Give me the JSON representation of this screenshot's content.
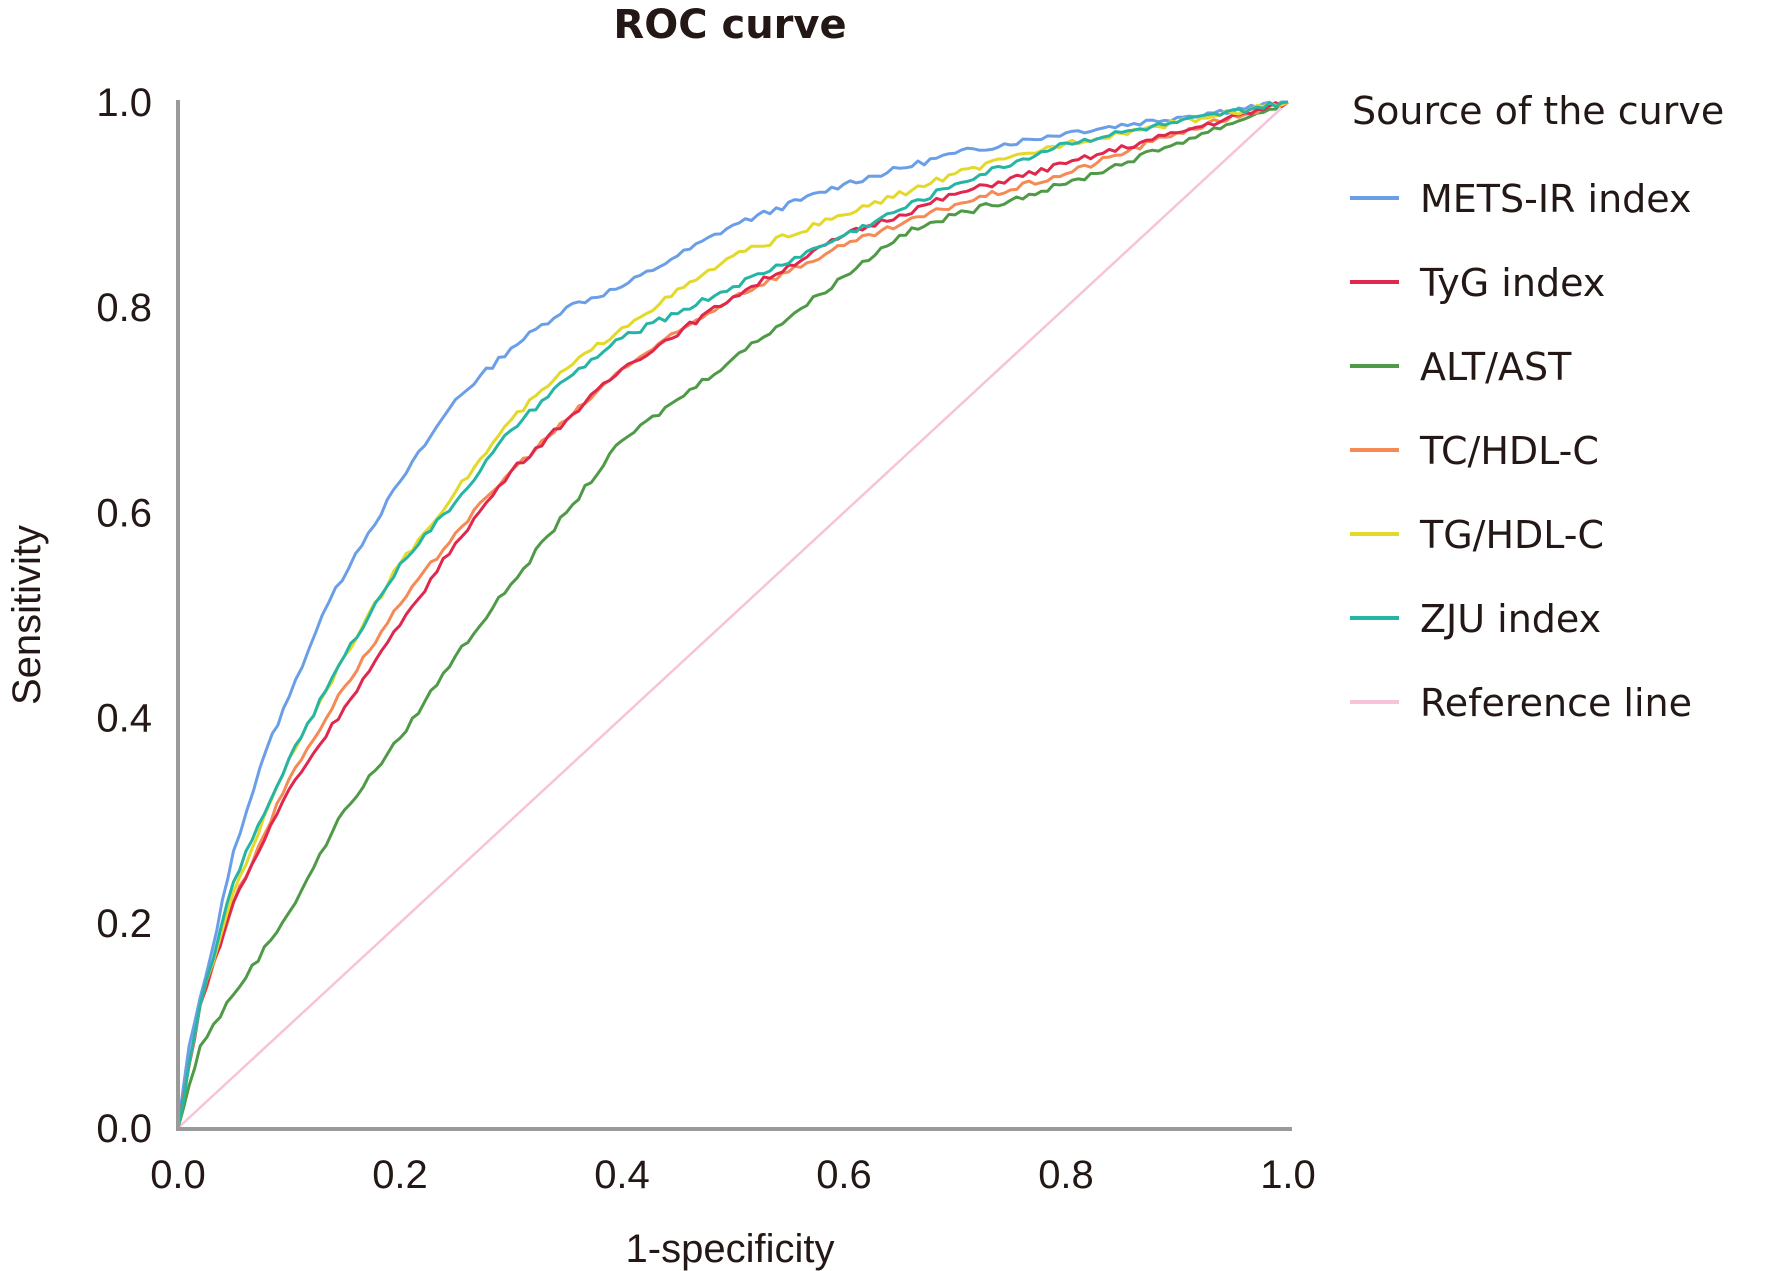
{
  "chart_data": {
    "type": "line",
    "title": "ROC curve",
    "xlabel": "1-specificity",
    "ylabel": "Sensitivity",
    "xlim": [
      0,
      1
    ],
    "ylim": [
      0,
      1
    ],
    "xticks": [
      "0.0",
      "0.2",
      "0.4",
      "0.6",
      "0.8",
      "1.0"
    ],
    "yticks": [
      "0.0",
      "0.2",
      "0.4",
      "0.6",
      "0.8",
      "1.0"
    ],
    "xtick_values": [
      0,
      0.2,
      0.4,
      0.6,
      0.8,
      1.0
    ],
    "ytick_values": [
      0,
      0.2,
      0.4,
      0.6,
      0.8,
      1.0
    ],
    "grid": false,
    "legend": {
      "title": "Source of the curve",
      "placement": "right"
    },
    "series": [
      {
        "name": "METS-IR index",
        "color": "#6a9fe8",
        "x": [
          0,
          0.01,
          0.03,
          0.05,
          0.08,
          0.1,
          0.13,
          0.16,
          0.2,
          0.25,
          0.3,
          0.35,
          0.4,
          0.45,
          0.5,
          0.6,
          0.7,
          0.8,
          0.9,
          1.0
        ],
        "y": [
          0,
          0.08,
          0.17,
          0.27,
          0.37,
          0.42,
          0.5,
          0.56,
          0.63,
          0.71,
          0.76,
          0.8,
          0.82,
          0.85,
          0.88,
          0.92,
          0.95,
          0.97,
          0.985,
          1.0
        ]
      },
      {
        "name": "TyG index",
        "color": "#e0284e",
        "x": [
          0,
          0.02,
          0.05,
          0.1,
          0.15,
          0.2,
          0.25,
          0.3,
          0.35,
          0.4,
          0.5,
          0.6,
          0.7,
          0.8,
          0.9,
          1.0
        ],
        "y": [
          0,
          0.12,
          0.22,
          0.33,
          0.41,
          0.49,
          0.57,
          0.64,
          0.69,
          0.74,
          0.81,
          0.87,
          0.91,
          0.94,
          0.97,
          1.0
        ]
      },
      {
        "name": "ALT/AST",
        "color": "#4f9a47",
        "x": [
          0,
          0.02,
          0.05,
          0.1,
          0.15,
          0.2,
          0.25,
          0.3,
          0.35,
          0.4,
          0.45,
          0.5,
          0.6,
          0.65,
          0.7,
          0.8,
          0.9,
          1.0
        ],
        "y": [
          0,
          0.08,
          0.13,
          0.21,
          0.31,
          0.38,
          0.46,
          0.53,
          0.6,
          0.67,
          0.71,
          0.75,
          0.83,
          0.87,
          0.89,
          0.92,
          0.96,
          1.0
        ]
      },
      {
        "name": "TC/HDL-C",
        "color": "#f58a55",
        "x": [
          0,
          0.02,
          0.05,
          0.1,
          0.15,
          0.2,
          0.25,
          0.3,
          0.35,
          0.4,
          0.5,
          0.6,
          0.7,
          0.8,
          0.9,
          1.0
        ],
        "y": [
          0,
          0.12,
          0.22,
          0.34,
          0.43,
          0.51,
          0.58,
          0.64,
          0.69,
          0.74,
          0.81,
          0.86,
          0.9,
          0.93,
          0.97,
          1.0
        ]
      },
      {
        "name": "TG/HDL-C",
        "color": "#e2d92a",
        "x": [
          0,
          0.02,
          0.05,
          0.1,
          0.15,
          0.2,
          0.25,
          0.3,
          0.35,
          0.4,
          0.5,
          0.6,
          0.7,
          0.8,
          0.9,
          1.0
        ],
        "y": [
          0,
          0.12,
          0.23,
          0.36,
          0.46,
          0.55,
          0.62,
          0.69,
          0.74,
          0.78,
          0.85,
          0.89,
          0.93,
          0.96,
          0.98,
          1.0
        ]
      },
      {
        "name": "ZJU index",
        "color": "#26b5a5",
        "x": [
          0,
          0.02,
          0.05,
          0.1,
          0.15,
          0.2,
          0.25,
          0.3,
          0.35,
          0.4,
          0.5,
          0.6,
          0.7,
          0.8,
          0.9,
          1.0
        ],
        "y": [
          0,
          0.12,
          0.24,
          0.36,
          0.46,
          0.55,
          0.61,
          0.68,
          0.73,
          0.77,
          0.82,
          0.87,
          0.92,
          0.96,
          0.98,
          1.0
        ]
      },
      {
        "name": "Reference line",
        "color": "#f7c3d8",
        "x": [
          0,
          1.0
        ],
        "y": [
          0,
          1.0
        ]
      }
    ]
  }
}
